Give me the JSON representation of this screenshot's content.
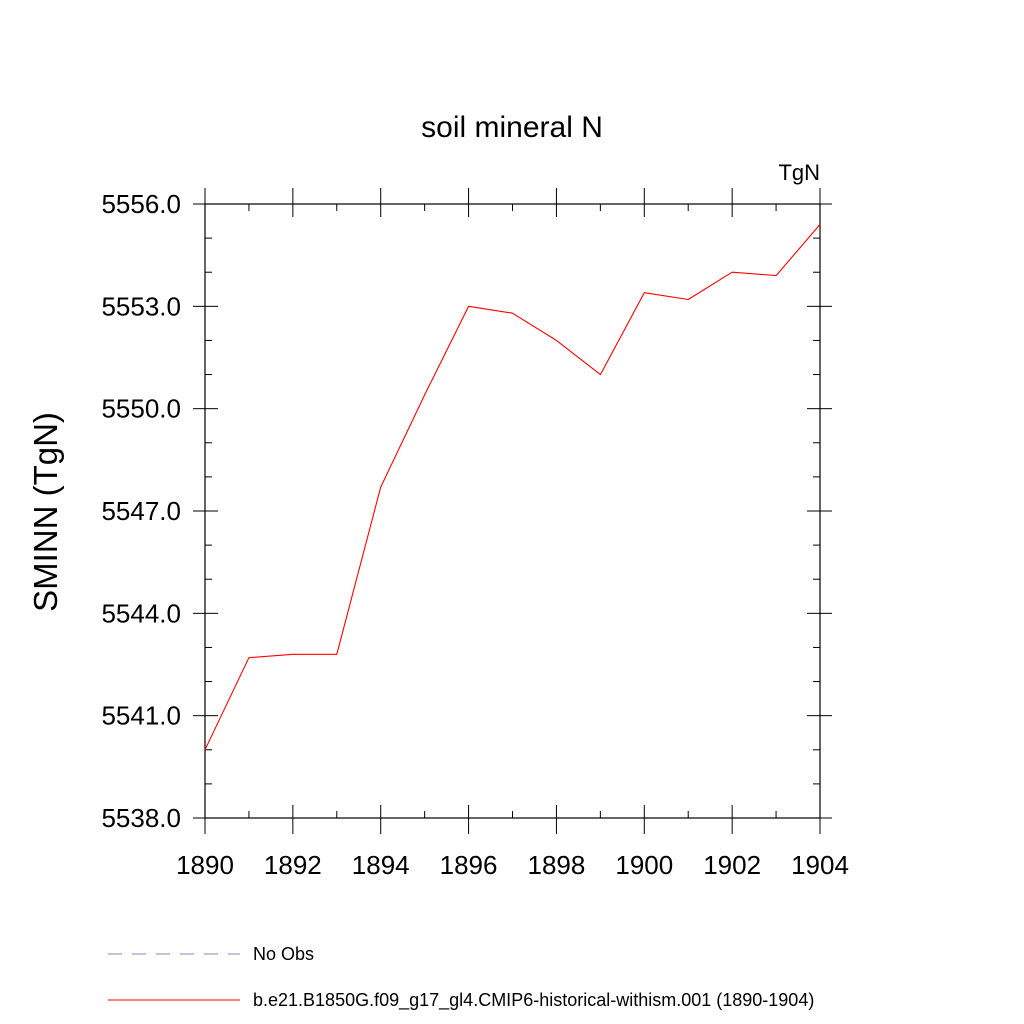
{
  "chart_data": {
    "type": "line",
    "title": "soil mineral N",
    "units_label": "TgN",
    "ylabel": "SMINN  (TgN)",
    "xlabel": "",
    "xlim": [
      1890,
      1904
    ],
    "ylim": [
      5538.0,
      5556.0
    ],
    "x_ticks": [
      "1890",
      "1892",
      "1894",
      "1896",
      "1898",
      "1900",
      "1902",
      "1904"
    ],
    "y_ticks": [
      "5538.0",
      "5541.0",
      "5544.0",
      "5547.0",
      "5550.0",
      "5553.0",
      "5556.0"
    ],
    "grid": false,
    "legend_placement": "bottom",
    "series": [
      {
        "name": "b.e21.B1850G.f09_g17_gl4.CMIP6-historical-withism.001 (1890-1904)",
        "color": "#ff0000",
        "style": "solid",
        "x": [
          1890,
          1891,
          1892,
          1893,
          1894,
          1895,
          1896,
          1897,
          1898,
          1899,
          1900,
          1901,
          1902,
          1903,
          1904
        ],
        "values": [
          5540.0,
          5542.7,
          5542.8,
          5542.8,
          5547.7,
          5550.4,
          5553.0,
          5552.8,
          5552.0,
          5551.0,
          5553.4,
          5553.2,
          5554.0,
          5553.9,
          5555.4
        ]
      }
    ],
    "legend": [
      {
        "label": "No Obs",
        "color": "#8a7fc7",
        "style": "dashed"
      },
      {
        "label": "b.e21.B1850G.f09_g17_gl4.CMIP6-historical-withism.001 (1890-1904)",
        "color": "#ff0000",
        "style": "solid"
      }
    ]
  }
}
